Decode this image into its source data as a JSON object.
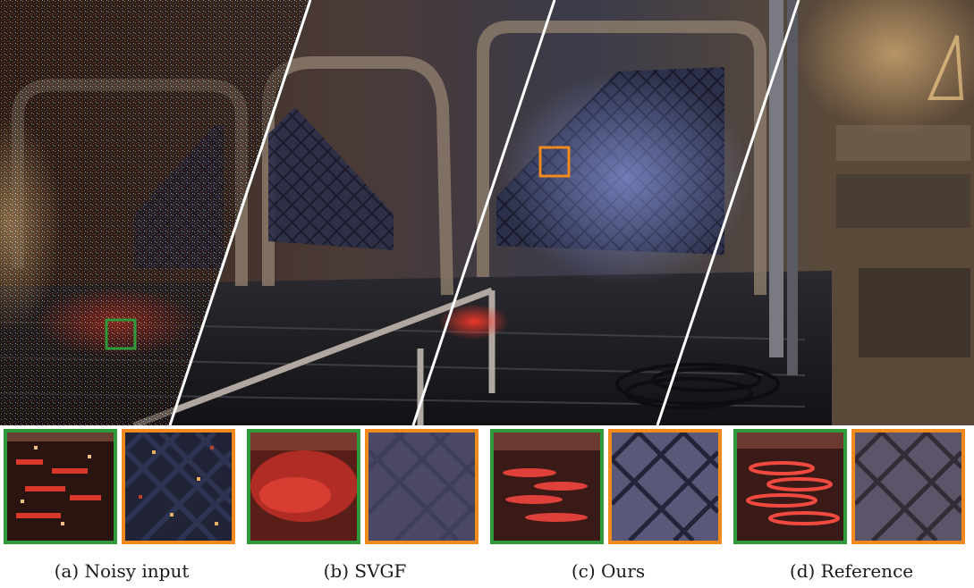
{
  "figure": {
    "captions": [
      {
        "id": "a",
        "text": "(a) Noisy input"
      },
      {
        "id": "b",
        "text": "(b) SVGF"
      },
      {
        "id": "c",
        "text": "(c) Ours"
      },
      {
        "id": "d",
        "text": "(d) Reference"
      }
    ]
  },
  "colors": {
    "green_box": "#2f9a3a",
    "orange_box": "#f08a1e",
    "divider": "#ffffff"
  },
  "icons": {
    "green_box": "green-highlight-box",
    "orange_box": "orange-highlight-box"
  }
}
